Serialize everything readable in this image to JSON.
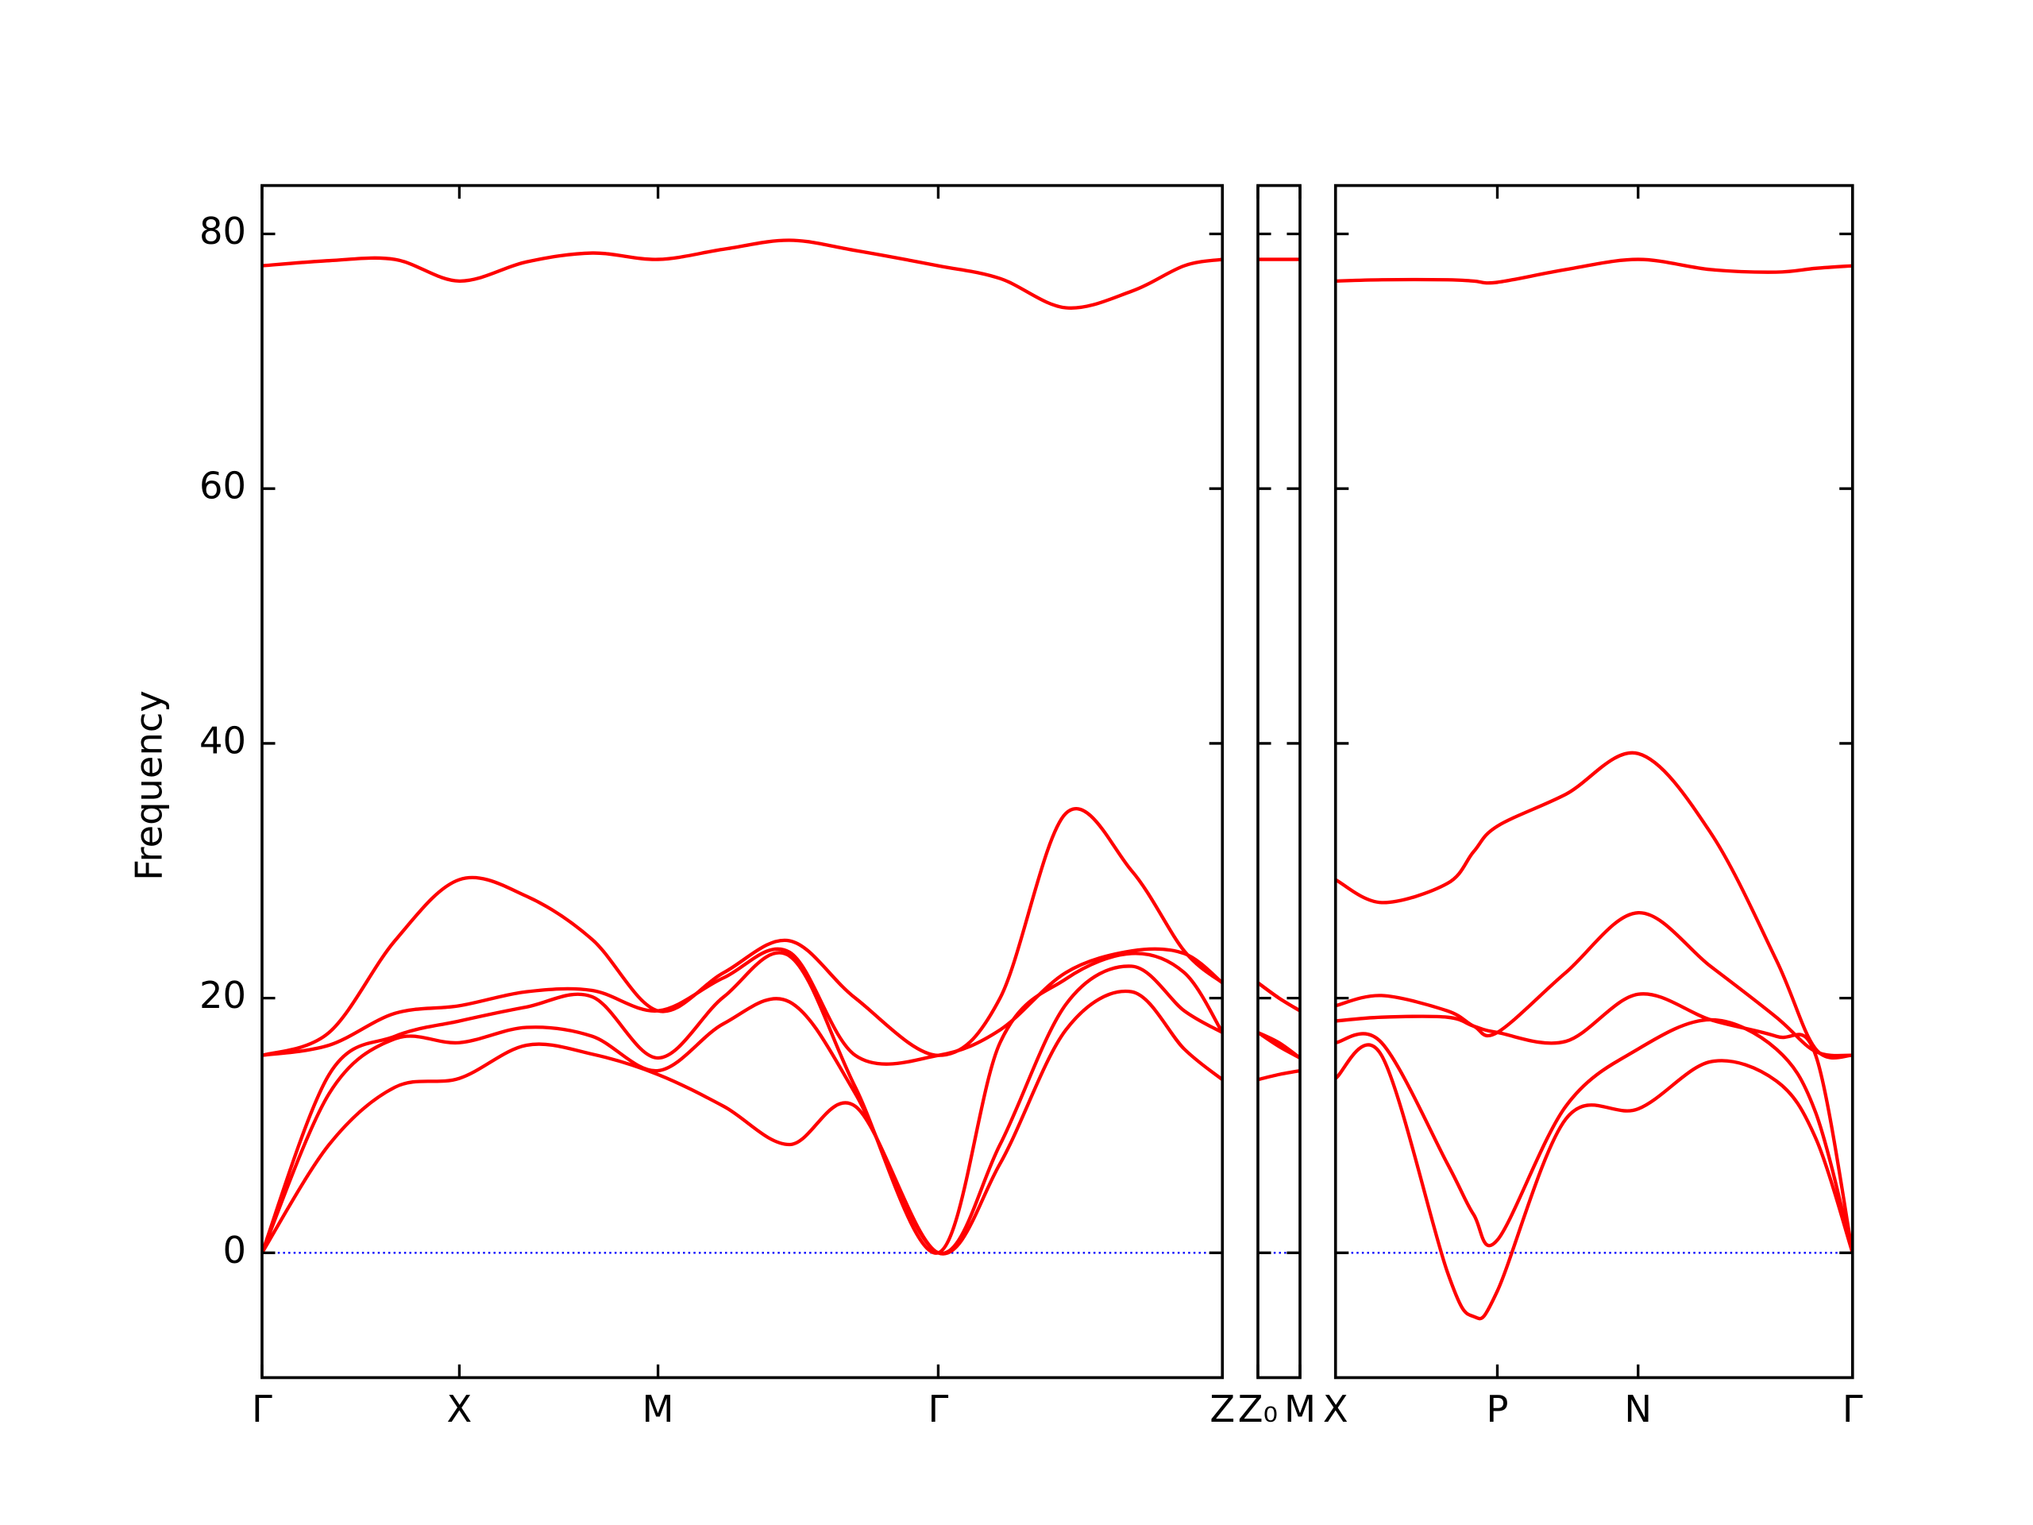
{
  "chart_data": [
    {
      "type": "line",
      "ylabel": "Frequency",
      "color": "#ff0000",
      "zero_line": {
        "value": 0,
        "color": "#0000ff"
      },
      "xlim": [
        0,
        7.3
      ],
      "ylim": [
        -9.8,
        83.8
      ],
      "yticks": [
        0,
        20,
        40,
        60,
        80
      ],
      "xticks": [
        {
          "value": 0,
          "label": "Γ"
        },
        {
          "value": 1.5,
          "label": "X"
        },
        {
          "value": 3.01,
          "label": "M"
        },
        {
          "value": 5.14,
          "label": "Γ"
        },
        {
          "value": 7.3,
          "label": "Z"
        }
      ],
      "x": [
        0,
        0.51,
        1.01,
        1.5,
        2.01,
        2.51,
        3.01,
        3.51,
        4.01,
        4.51,
        5.14,
        5.61,
        6.11,
        6.61,
        7.01,
        7.3
      ],
      "series": [
        {
          "values": [
            0,
            8.5,
            13.0,
            13.7,
            16.3,
            15.6,
            14.0,
            11.5,
            8.5,
            11.5,
            0,
            7.0,
            17.5,
            20.5,
            16.0,
            13.6
          ]
        },
        {
          "values": [
            0,
            12.5,
            16.8,
            16.5,
            17.7,
            17.0,
            14.3,
            18.0,
            19.7,
            12.5,
            0,
            8.5,
            19.5,
            22.5,
            19.0,
            17.3
          ]
        },
        {
          "values": [
            0,
            14.0,
            17.0,
            18.2,
            19.3,
            20.1,
            15.3,
            20.1,
            23.3,
            13.0,
            0,
            16.5,
            21.5,
            23.5,
            22.0,
            17.3
          ]
        },
        {
          "values": [
            15.5,
            16.3,
            18.8,
            19.4,
            20.5,
            20.6,
            19.0,
            21.6,
            23.6,
            15.5,
            15.5,
            17.5,
            22.0,
            23.7,
            23.5,
            21.2
          ]
        },
        {
          "values": [
            15.5,
            17.3,
            24.5,
            29.3,
            28.0,
            24.6,
            19.0,
            22.0,
            24.5,
            20.0,
            15.5,
            20.0,
            34.5,
            30.0,
            23.7,
            21.2
          ]
        },
        {
          "values": [
            77.5,
            77.9,
            78.0,
            76.3,
            77.8,
            78.5,
            78.0,
            78.8,
            79.5,
            78.7,
            77.5,
            76.5,
            74.2,
            75.5,
            77.5,
            78.0
          ]
        }
      ]
    },
    {
      "type": "line",
      "color": "#ff0000",
      "xlim": [
        0,
        0.32
      ],
      "ylim": [
        -9.8,
        83.8
      ],
      "xticks": [
        {
          "value": 0,
          "label": "Z₀"
        },
        {
          "value": 0.32,
          "label": "M"
        }
      ],
      "x": [
        0,
        0.16,
        0.32
      ],
      "series": [
        {
          "values": [
            13.6,
            14.0,
            14.3
          ]
        },
        {
          "values": [
            17.3,
            16.2,
            15.3
          ]
        },
        {
          "values": [
            17.3,
            16.5,
            15.3
          ]
        },
        {
          "values": [
            21.2,
            20.0,
            19.0
          ]
        },
        {
          "values": [
            21.2,
            20.0,
            19.0
          ]
        },
        {
          "values": [
            78.0,
            78.0,
            78.0
          ]
        }
      ]
    },
    {
      "type": "line",
      "color": "#ff0000",
      "xlim": [
        0,
        3.93
      ],
      "ylim": [
        -9.8,
        83.8
      ],
      "xticks": [
        {
          "value": 0,
          "label": "X"
        },
        {
          "value": 1.23,
          "label": "P"
        },
        {
          "value": 2.3,
          "label": "N"
        },
        {
          "value": 3.93,
          "label": "Γ"
        }
      ],
      "x": [
        0,
        0.35,
        0.85,
        1.05,
        1.23,
        1.75,
        2.3,
        2.85,
        3.35,
        3.65,
        3.93
      ],
      "series": [
        {
          "values": [
            13.7,
            15.5,
            -1.5,
            -5.0,
            -3.0,
            10.5,
            11.3,
            15.0,
            13.5,
            9.0,
            0
          ]
        },
        {
          "values": [
            16.5,
            16.5,
            7.0,
            3.0,
            1.0,
            11.5,
            16.0,
            18.3,
            16.0,
            11.0,
            0
          ]
        },
        {
          "values": [
            18.2,
            18.5,
            18.5,
            17.8,
            17.3,
            16.6,
            20.3,
            18.3,
            17.0,
            15.5,
            0
          ]
        },
        {
          "values": [
            19.4,
            20.2,
            19.0,
            17.8,
            17.3,
            22.0,
            26.7,
            22.5,
            18.5,
            15.8,
            15.5
          ]
        },
        {
          "values": [
            29.3,
            27.5,
            29.0,
            31.5,
            33.5,
            36.0,
            39.2,
            33.0,
            23.0,
            16.0,
            15.5
          ]
        },
        {
          "values": [
            76.3,
            76.4,
            76.4,
            76.3,
            76.2,
            77.2,
            78.0,
            77.2,
            77.0,
            77.3,
            77.5
          ]
        }
      ]
    }
  ]
}
